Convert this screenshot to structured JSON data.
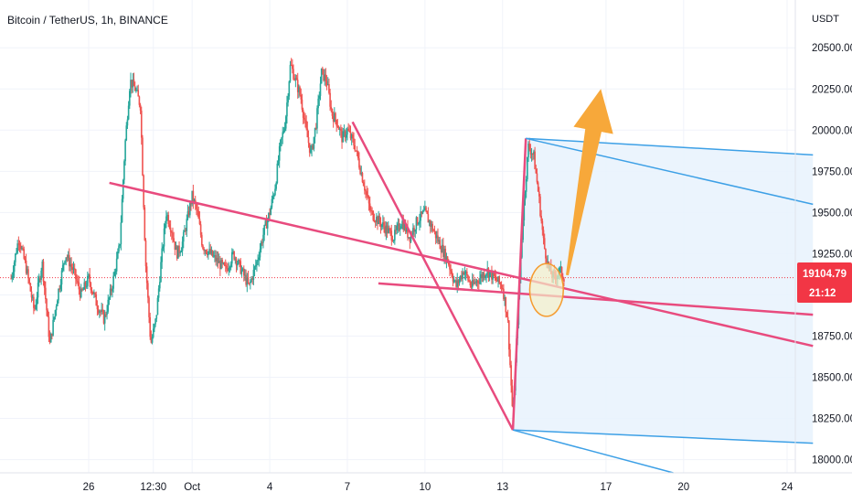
{
  "header": {
    "title": "Bitcoin / TetherUS, 1h, BINANCE"
  },
  "axis": {
    "unit": "USDT",
    "price_label": "19104.79",
    "countdown_label": "21:12"
  },
  "colors": {
    "up": "#26a69a",
    "down": "#ef5350",
    "pink_line": "#e84b7e",
    "blue_line": "#3da0e6",
    "blue_fill": "#e7f2fd",
    "arrow": "#f7a83a",
    "circle_fill": "#f5f0c8",
    "circle_stroke": "#f59b2f",
    "price_tag": "#f23645"
  },
  "chart_data": {
    "type": "candlestick",
    "title": "Bitcoin / TetherUS, 1h, BINANCE",
    "ylabel": "USDT",
    "ylim": [
      17920,
      20790
    ],
    "y_ticks": [
      18000,
      18250,
      18500,
      18750,
      19000,
      19250,
      19500,
      19750,
      20000,
      20250,
      20500
    ],
    "y_tick_labels": [
      "18000.00",
      "18250.00",
      "18500.00",
      "18750.00",
      "",
      "19250.00",
      "19500.00",
      "19750.00",
      "20000.00",
      "20250.00",
      "20500.00"
    ],
    "x_ticks": [
      {
        "label": "26",
        "day": 26
      },
      {
        "label": "12:30",
        "day": 28.5
      },
      {
        "label": "Oct",
        "day": 30
      },
      {
        "label": "4",
        "day": 33
      },
      {
        "label": "7",
        "day": 36
      },
      {
        "label": "10",
        "day": 39
      },
      {
        "label": "13",
        "day": 42
      },
      {
        "label": "17",
        "day": 46
      },
      {
        "label": "20",
        "day": 49
      },
      {
        "label": "24",
        "day": 53
      }
    ],
    "last_price": 19104.79,
    "price_path": [
      [
        23.0,
        19100
      ],
      [
        23.3,
        19350
      ],
      [
        23.6,
        19150
      ],
      [
        23.9,
        18900
      ],
      [
        24.2,
        19200
      ],
      [
        24.5,
        18700
      ],
      [
        24.8,
        19000
      ],
      [
        25.1,
        19250
      ],
      [
        25.4,
        19150
      ],
      [
        25.7,
        19000
      ],
      [
        26.0,
        19100
      ],
      [
        26.3,
        18950
      ],
      [
        26.6,
        18850
      ],
      [
        26.9,
        19050
      ],
      [
        27.2,
        19300
      ],
      [
        27.4,
        19900
      ],
      [
        27.6,
        20300
      ],
      [
        27.8,
        20250
      ],
      [
        28.0,
        20150
      ],
      [
        28.2,
        19200
      ],
      [
        28.4,
        18700
      ],
      [
        28.6,
        18850
      ],
      [
        28.8,
        19200
      ],
      [
        29.0,
        19500
      ],
      [
        29.2,
        19400
      ],
      [
        29.4,
        19250
      ],
      [
        29.6,
        19300
      ],
      [
        29.8,
        19450
      ],
      [
        30.0,
        19600
      ],
      [
        30.2,
        19500
      ],
      [
        30.4,
        19300
      ],
      [
        30.7,
        19250
      ],
      [
        31.0,
        19200
      ],
      [
        31.3,
        19150
      ],
      [
        31.6,
        19250
      ],
      [
        31.9,
        19150
      ],
      [
        32.2,
        19050
      ],
      [
        32.5,
        19200
      ],
      [
        32.8,
        19400
      ],
      [
        33.0,
        19500
      ],
      [
        33.2,
        19650
      ],
      [
        33.4,
        19900
      ],
      [
        33.6,
        20050
      ],
      [
        33.8,
        20400
      ],
      [
        34.0,
        20300
      ],
      [
        34.2,
        20200
      ],
      [
        34.4,
        20000
      ],
      [
        34.6,
        19850
      ],
      [
        34.8,
        20050
      ],
      [
        35.0,
        20350
      ],
      [
        35.2,
        20300
      ],
      [
        35.4,
        20100
      ],
      [
        35.6,
        20050
      ],
      [
        35.8,
        19950
      ],
      [
        36.0,
        20000
      ],
      [
        36.3,
        19900
      ],
      [
        36.6,
        19700
      ],
      [
        36.9,
        19500
      ],
      [
        37.2,
        19450
      ],
      [
        37.5,
        19400
      ],
      [
        37.8,
        19350
      ],
      [
        38.1,
        19450
      ],
      [
        38.4,
        19350
      ],
      [
        38.7,
        19450
      ],
      [
        39.0,
        19500
      ],
      [
        39.3,
        19400
      ],
      [
        39.6,
        19300
      ],
      [
        39.9,
        19200
      ],
      [
        40.2,
        19050
      ],
      [
        40.5,
        19150
      ],
      [
        40.8,
        19050
      ],
      [
        41.1,
        19100
      ],
      [
        41.4,
        19150
      ],
      [
        41.7,
        19100
      ],
      [
        42.0,
        19050
      ],
      [
        42.2,
        18850
      ],
      [
        42.4,
        18250
      ],
      [
        42.6,
        18900
      ],
      [
        42.8,
        19500
      ],
      [
        43.0,
        19900
      ],
      [
        43.2,
        19850
      ],
      [
        43.4,
        19600
      ],
      [
        43.6,
        19300
      ],
      [
        43.8,
        19150
      ],
      [
        44.0,
        19100
      ],
      [
        44.2,
        19150
      ],
      [
        44.4,
        19105
      ]
    ],
    "annotations": [
      {
        "type": "line",
        "color": "pink",
        "from": [
          26.8,
          19680
        ],
        "to": [
          54.0,
          18690
        ]
      },
      {
        "type": "line",
        "color": "pink",
        "from": [
          37.2,
          19070
        ],
        "to": [
          54.0,
          18880
        ]
      },
      {
        "type": "line",
        "color": "pink",
        "from": [
          36.2,
          20050
        ],
        "to": [
          42.4,
          18180
        ]
      },
      {
        "type": "line",
        "color": "pink",
        "from": [
          42.4,
          18180
        ],
        "to": [
          42.9,
          19950
        ]
      },
      {
        "type": "line",
        "color": "blue",
        "from": [
          42.9,
          19950
        ],
        "to": [
          54.0,
          19850
        ]
      },
      {
        "type": "line",
        "color": "blue",
        "from": [
          42.9,
          19950
        ],
        "to": [
          54.0,
          19550
        ]
      },
      {
        "type": "line",
        "color": "blue",
        "from": [
          42.4,
          18180
        ],
        "to": [
          54.0,
          18100
        ]
      },
      {
        "type": "line",
        "color": "blue",
        "from": [
          42.4,
          18180
        ],
        "to": [
          48.6,
          17920
        ]
      },
      {
        "type": "ellipse",
        "center": [
          43.7,
          19030
        ],
        "rx_days": 0.65,
        "ry_price": 160
      },
      {
        "type": "arrow",
        "from": [
          44.5,
          19120
        ],
        "to": [
          45.8,
          20250
        ]
      }
    ]
  }
}
